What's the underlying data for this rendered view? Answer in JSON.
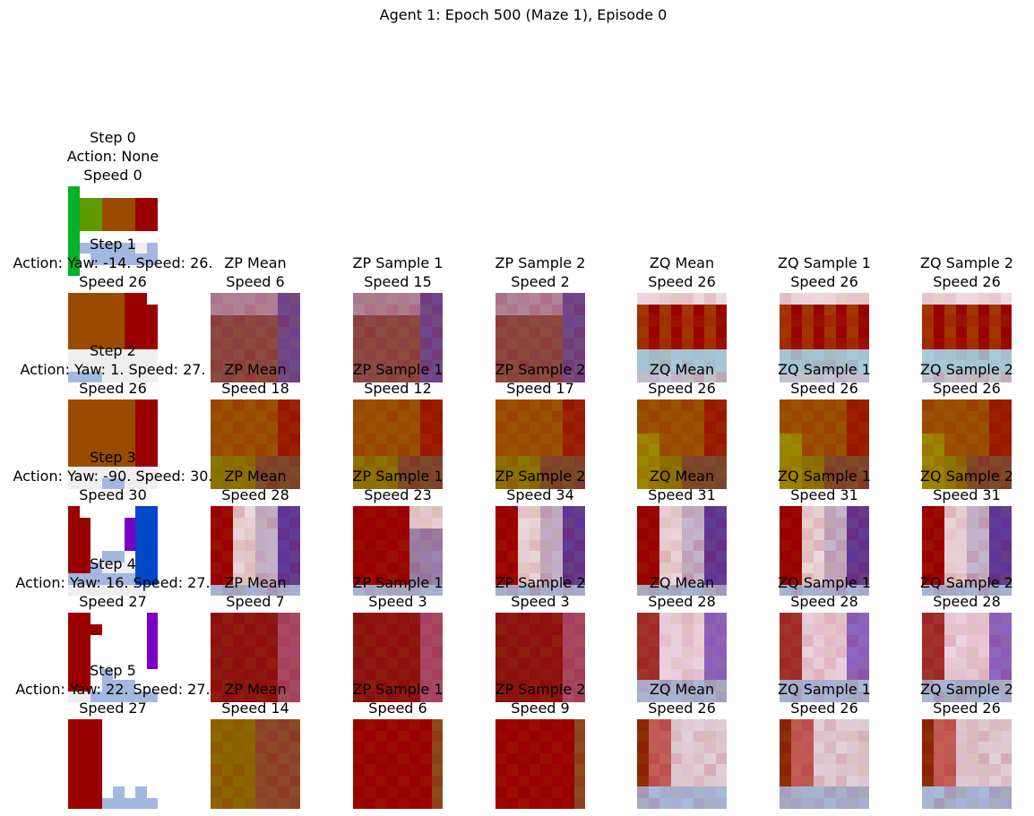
{
  "figure": {
    "title": "Agent 1: Epoch 500 (Maze 1), Episode 0"
  },
  "columns": [
    "",
    "ZP Mean",
    "ZP Sample 1",
    "ZP Sample 2",
    "ZQ Mean",
    "ZQ Sample 1",
    "ZQ Sample 2"
  ],
  "steps": [
    {
      "step": "Step 0",
      "action": "Action: None",
      "speed": "Speed 0",
      "preds": []
    },
    {
      "step": "Step 1",
      "action": "Action: Yaw: -14. Speed: 26.",
      "speed": "Speed 26",
      "preds": [
        "Speed 6",
        "Speed 15",
        "Speed 2",
        "Speed 26",
        "Speed 26",
        "Speed 26"
      ]
    },
    {
      "step": "Step 2",
      "action": "Action: Yaw: 1. Speed: 27.",
      "speed": "Speed 26",
      "preds": [
        "Speed 18",
        "Speed 12",
        "Speed 17",
        "Speed 26",
        "Speed 26",
        "Speed 26"
      ]
    },
    {
      "step": "Step 3",
      "action": "Action: Yaw: -90. Speed: 30.",
      "speed": "Speed 30",
      "preds": [
        "Speed 28",
        "Speed 23",
        "Speed 34",
        "Speed 31",
        "Speed 31",
        "Speed 31"
      ]
    },
    {
      "step": "Step 4",
      "action": "Action: Yaw: 16. Speed: 27.",
      "speed": "Speed 27",
      "preds": [
        "Speed 7",
        "Speed 3",
        "Speed 3",
        "Speed 28",
        "Speed 28",
        "Speed 28"
      ]
    },
    {
      "step": "Step 5",
      "action": "Action: Yaw: 22. Speed: 27.",
      "speed": "Speed 27",
      "preds": [
        "Speed 14",
        "Speed 6",
        "Speed 9",
        "Speed 26",
        "Speed 26",
        "Speed 26"
      ]
    }
  ],
  "palette": {
    "red": "#9b0000",
    "orange": "#9a4b00",
    "green": "#00b22a",
    "olive": "#5e9900",
    "blue": "#0048c8",
    "purple": "#7a00c8",
    "white": "#ffffff",
    "light": "#eeeeee",
    "floor": "#a3b8e0",
    "sky": "#a6d8f0"
  }
}
